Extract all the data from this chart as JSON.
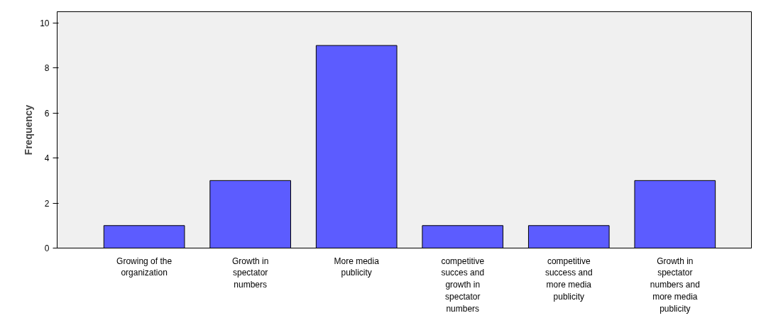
{
  "chart_data": {
    "type": "bar",
    "ylabel": "Frequency",
    "categories": [
      "Growing of the organization",
      "Growth in spectator numbers",
      "More media publicity",
      "competitive succes and growth in spectator numbers",
      "competitive success and more media publicity",
      "Growth in spectator numbers and more media publicity"
    ],
    "values": [
      1,
      3,
      9,
      1,
      1,
      3
    ],
    "color": "#5c5cff",
    "ylim": [
      0,
      10.5
    ],
    "yticks": [
      0,
      2,
      4,
      6,
      8,
      10
    ],
    "grid": false
  }
}
